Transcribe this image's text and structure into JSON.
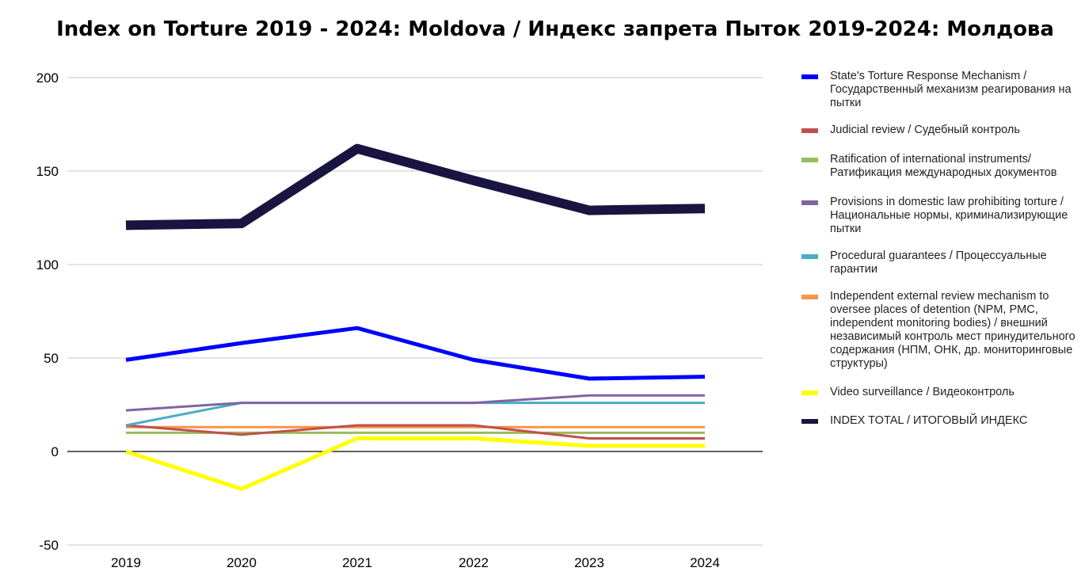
{
  "chart_data": {
    "type": "line",
    "title": "Index on Torture 2019 - 2024: Moldova / Индекс запрета Пыток 2019-2024: Молдова",
    "xlabel": "",
    "ylabel": "",
    "x": [
      "2019",
      "2020",
      "2021",
      "2022",
      "2023",
      "2024"
    ],
    "yticks": [
      200,
      150,
      100,
      50,
      0,
      -50
    ],
    "ylim": [
      -50,
      200
    ],
    "grid": true,
    "legend_position": "right",
    "series": [
      {
        "name": "State's Torture Response Mechanism / Государственный механизм реагирования на пытки",
        "color": "#0000ff",
        "width": 5,
        "values": [
          49,
          58,
          66,
          49,
          39,
          40
        ]
      },
      {
        "name": "Judicial review / Судебный контроль",
        "color": "#c0504d",
        "width": 3,
        "values": [
          14,
          9,
          14,
          14,
          7,
          7
        ]
      },
      {
        "name": "Ratification of international instruments/ Ратификация международных документов",
        "color": "#9bbb59",
        "width": 3,
        "values": [
          10,
          10,
          10,
          10,
          10,
          10
        ]
      },
      {
        "name": "Provisions in domestic law prohibiting torture / Национальные нормы, криминализирующие пытки",
        "color": "#8064a2",
        "width": 3,
        "values": [
          22,
          26,
          26,
          26,
          30,
          30
        ]
      },
      {
        "name": "Procedural guarantees / Процессуальные гарантии",
        "color": "#4bacc6",
        "width": 3,
        "values": [
          14,
          26,
          26,
          26,
          26,
          26
        ]
      },
      {
        "name": "Independent external review mechanism to oversee places of detention (NPM, PMC, independent monitoring bodies) / внешний независимый контроль мест принудительного содержания (НПМ, ОНК, др. мониторинговые структуры)",
        "color": "#f79646",
        "width": 3,
        "values": [
          13,
          13,
          13,
          13,
          13,
          13
        ]
      },
      {
        "name": "Video surveillance / Видеоконтроль",
        "color": "#ffff00",
        "width": 5,
        "values": [
          0,
          -20,
          7,
          7,
          3,
          3
        ]
      },
      {
        "name": "INDEX TOTAL /  ИТОГОВЫЙ ИНДЕКС",
        "color": "#1a1440",
        "width": 12,
        "values": [
          121,
          122,
          162,
          145,
          129,
          130
        ]
      }
    ]
  }
}
